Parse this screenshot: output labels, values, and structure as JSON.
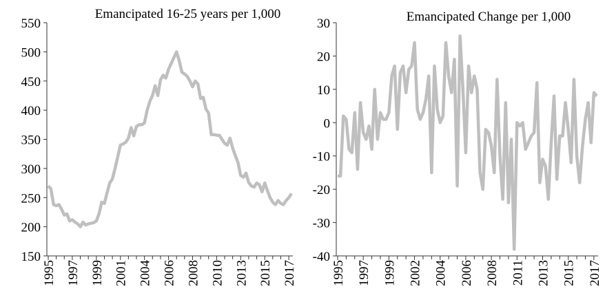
{
  "chart_data": [
    {
      "type": "line",
      "title": "Emancipated 16-25 years per 1,000",
      "categories": [
        "1995",
        null,
        null,
        null,
        null,
        null,
        null,
        null,
        null,
        "1997",
        null,
        null,
        null,
        null,
        null,
        null,
        null,
        null,
        "1999",
        null,
        null,
        null,
        null,
        null,
        null,
        null,
        null,
        "2001",
        null,
        null,
        null,
        null,
        null,
        null,
        null,
        null,
        "2004",
        null,
        null,
        null,
        null,
        null,
        null,
        null,
        null,
        "2006",
        null,
        null,
        null,
        null,
        null,
        null,
        null,
        null,
        "2008",
        null,
        null,
        null,
        null,
        null,
        null,
        null,
        null,
        "2010",
        null,
        null,
        null,
        null,
        null,
        null,
        null,
        null,
        "2013",
        null,
        null,
        null,
        null,
        null,
        null,
        null,
        null,
        "2015",
        null,
        null,
        null,
        null,
        null,
        null,
        null,
        null,
        "2017",
        null
      ],
      "series": [
        {
          "color": "#bfbfbf",
          "values": [
            270,
            265,
            238,
            236,
            238,
            230,
            220,
            222,
            210,
            212,
            208,
            205,
            200,
            208,
            203,
            205,
            206,
            207,
            210,
            222,
            242,
            240,
            258,
            275,
            282,
            300,
            320,
            340,
            342,
            345,
            352,
            370,
            356,
            372,
            375,
            375,
            378,
            400,
            415,
            425,
            442,
            425,
            452,
            460,
            455,
            470,
            480,
            490,
            500,
            485,
            465,
            462,
            458,
            450,
            440,
            450,
            445,
            420,
            422,
            402,
            395,
            358,
            358,
            357,
            357,
            350,
            343,
            340,
            352,
            335,
            322,
            310,
            288,
            285,
            292,
            276,
            270,
            268,
            275,
            272,
            260,
            275,
            262,
            250,
            242,
            238,
            245,
            240,
            238,
            245,
            250,
            257
          ]
        }
      ],
      "ylim": [
        150,
        550
      ],
      "yticks": [
        150,
        200,
        250,
        300,
        350,
        400,
        450,
        500,
        550
      ]
    },
    {
      "type": "line",
      "title": "Emancipated Change per 1,000",
      "categories": [
        "1995",
        null,
        null,
        null,
        null,
        null,
        null,
        null,
        null,
        "1997",
        null,
        null,
        null,
        null,
        null,
        null,
        null,
        null,
        "1999",
        null,
        null,
        null,
        null,
        null,
        null,
        null,
        null,
        "2002",
        null,
        null,
        null,
        null,
        null,
        null,
        null,
        null,
        "2004",
        null,
        null,
        null,
        null,
        null,
        null,
        null,
        null,
        "2006",
        null,
        null,
        null,
        null,
        null,
        null,
        null,
        null,
        "2008",
        null,
        null,
        null,
        null,
        null,
        null,
        null,
        null,
        "2011",
        null,
        null,
        null,
        null,
        null,
        null,
        null,
        null,
        "2013",
        null,
        null,
        null,
        null,
        null,
        null,
        null,
        null,
        "2015",
        null,
        null,
        null,
        null,
        null,
        null,
        null,
        null,
        "2017",
        null
      ],
      "series": [
        {
          "color": "#bfbfbf",
          "values": [
            -16,
            -16,
            2,
            1,
            -8,
            -9,
            3,
            -14,
            6,
            -3,
            -5,
            -1,
            -8,
            10,
            -5,
            3,
            1,
            1,
            3,
            14,
            17,
            -2,
            15,
            17,
            9,
            16,
            17,
            24,
            4,
            1,
            3,
            7,
            14,
            -15,
            17,
            4,
            0,
            2,
            24,
            14,
            9,
            19,
            -19,
            26,
            10,
            -9,
            17,
            9,
            14,
            10,
            -15,
            -20,
            -2,
            -3,
            -7,
            -15,
            13,
            -10,
            -23,
            6,
            -24,
            -5,
            -38,
            0,
            -1,
            0,
            -8,
            -6,
            -4,
            -3,
            12,
            -18,
            -11,
            -13,
            -23,
            -6,
            8,
            -17,
            -4,
            -4,
            6,
            -2,
            -12,
            13,
            -10,
            -18,
            -7,
            1,
            6,
            -6,
            9,
            8
          ]
        }
      ],
      "ylim": [
        -40,
        30
      ],
      "yticks": [
        -40,
        -30,
        -20,
        -10,
        0,
        10,
        20,
        30
      ]
    }
  ]
}
